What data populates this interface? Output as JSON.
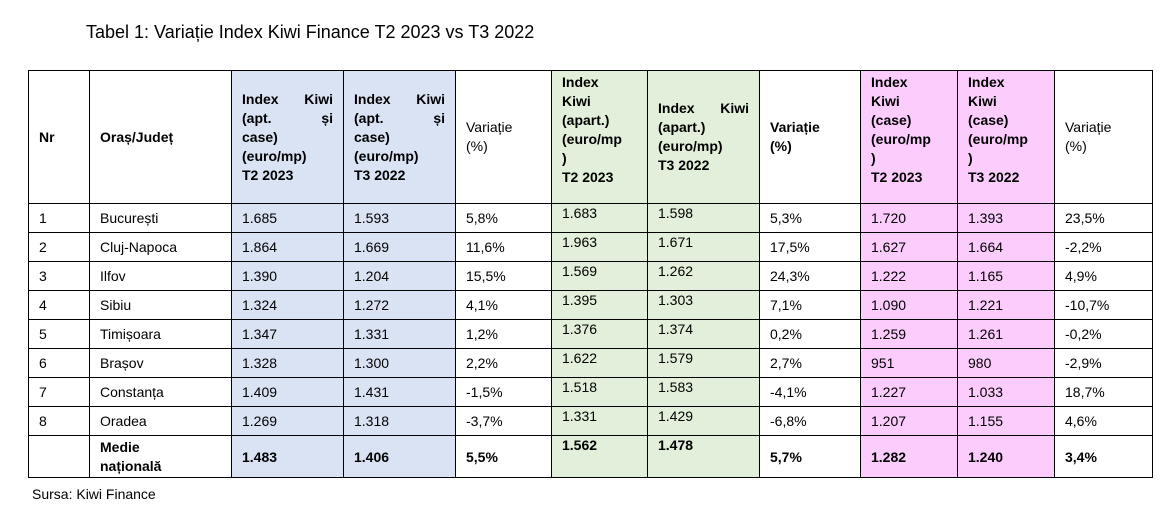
{
  "caption": "Tabel 1: Variație Index Kiwi Finance T2 2023 vs T3 2022",
  "source": "Sursa: Kiwi Finance",
  "headers": {
    "nr": "Nr",
    "oras": "Oraș/Județ",
    "idx_total_t2_line1": "Index Kiwi",
    "idx_total_t2_line2": "(apt. și",
    "idx_total_t2_line3": "case)",
    "idx_total_t2_line4": "(euro/mp)",
    "idx_total_t2_line5": "T2 2023",
    "idx_total_t3_line1": "Index Kiwi",
    "idx_total_t3_line2": "(apt. și",
    "idx_total_t3_line3": "case)",
    "idx_total_t3_line4": "(euro/mp)",
    "idx_total_t3_line5": "T3 2022",
    "var1_line1": "Variație",
    "var1_line2": "(%)",
    "idx_apart_t2_line1": "Index",
    "idx_apart_t2_line2": "Kiwi",
    "idx_apart_t2_line3": "(apart.)",
    "idx_apart_t2_line4": "(euro/mp",
    "idx_apart_t2_line5": ")",
    "idx_apart_t2_line6": "T2 2023",
    "idx_apart_t3_line1": "Index Kiwi",
    "idx_apart_t3_line2": "(apart.)",
    "idx_apart_t3_line3": "(euro/mp)",
    "idx_apart_t3_line4": "T3 2022",
    "var2_line1": "Variație",
    "var2_line2": "(%)",
    "idx_case_t2_line1": "Index",
    "idx_case_t2_line2": "Kiwi",
    "idx_case_t2_line3": "(case)",
    "idx_case_t2_line4": "(euro/mp",
    "idx_case_t2_line5": ")",
    "idx_case_t2_line6": "T2 2023",
    "idx_case_t3_line1": "Index",
    "idx_case_t3_line2": "Kiwi",
    "idx_case_t3_line3": "(case)",
    "idx_case_t3_line4": "(euro/mp",
    "idx_case_t3_line5": ")",
    "idx_case_t3_line6": "T3 2022",
    "var3_line1": "Variație",
    "var3_line2": "(%)"
  },
  "rows": [
    {
      "nr": "1",
      "oras": "București",
      "a": "1.685",
      "b": "1.593",
      "v1": "5,8%",
      "c": "1.683",
      "d": "1.598",
      "v2": "5,3%",
      "e": "1.720",
      "f": "1.393",
      "v3": "23,5%"
    },
    {
      "nr": "2",
      "oras": "Cluj-Napoca",
      "a": "1.864",
      "b": "1.669",
      "v1": "11,6%",
      "c": "1.963",
      "d": "1.671",
      "v2": "17,5%",
      "e": "1.627",
      "f": "1.664",
      "v3": "-2,2%"
    },
    {
      "nr": "3",
      "oras": "Ilfov",
      "a": "1.390",
      "b": "1.204",
      "v1": "15,5%",
      "c": "1.569",
      "d": "1.262",
      "v2": "24,3%",
      "e": "1.222",
      "f": "1.165",
      "v3": "4,9%"
    },
    {
      "nr": "4",
      "oras": "Sibiu",
      "a": "1.324",
      "b": "1.272",
      "v1": "4,1%",
      "c": "1.395",
      "d": "1.303",
      "v2": "7,1%",
      "e": "1.090",
      "f": "1.221",
      "v3": "-10,7%"
    },
    {
      "nr": "5",
      "oras": "Timișoara",
      "a": "1.347",
      "b": "1.331",
      "v1": "1,2%",
      "c": "1.376",
      "d": "1.374",
      "v2": "0,2%",
      "e": "1.259",
      "f": "1.261",
      "v3": "-0,2%"
    },
    {
      "nr": "6",
      "oras": "Brașov",
      "a": "1.328",
      "b": "1.300",
      "v1": "2,2%",
      "c": "1.622",
      "d": "1.579",
      "v2": "2,7%",
      "e": "951",
      "f": "980",
      "v3": "-2,9%"
    },
    {
      "nr": "7",
      "oras": "Constanța",
      "a": "1.409",
      "b": "1.431",
      "v1": "-1,5%",
      "c": "1.518",
      "d": "1.583",
      "v2": "-4,1%",
      "e": "1.227",
      "f": "1.033",
      "v3": "18,7%"
    },
    {
      "nr": "8",
      "oras": "Oradea",
      "a": "1.269",
      "b": "1.318",
      "v1": "-3,7%",
      "c": "1.331",
      "d": "1.429",
      "v2": "-6,8%",
      "e": "1.207",
      "f": "1.155",
      "v3": "4,6%"
    }
  ],
  "total": {
    "label_line1": "Medie",
    "label_line2": "națională",
    "a": "1.483",
    "b": "1.406",
    "v1": "5,5%",
    "c": "1.562",
    "d": "1.478",
    "v2": "5,7%",
    "e": "1.282",
    "f": "1.240",
    "v3": "3,4%"
  }
}
